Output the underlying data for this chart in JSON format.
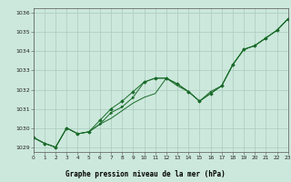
{
  "title": "Graphe pression niveau de la mer (hPa)",
  "bg_color": "#cce8dc",
  "plot_bg": "#cce8dc",
  "grid_color": "#aacabc",
  "line_color": "#1a6b2a",
  "title_bg": "#2a8050",
  "title_color": "#ffffff",
  "x_values": [
    0,
    1,
    2,
    3,
    4,
    5,
    6,
    7,
    8,
    9,
    10,
    11,
    12,
    13,
    14,
    15,
    16,
    17,
    18,
    19,
    20,
    21,
    22,
    23
  ],
  "series1": [
    1029.5,
    1029.2,
    1029.0,
    1030.0,
    1029.7,
    1029.8,
    1030.2,
    1030.5,
    1030.9,
    1031.3,
    1031.6,
    1031.8,
    1032.6,
    1032.2,
    1031.9,
    1031.4,
    1031.8,
    1032.2,
    1033.3,
    1034.1,
    1034.3,
    1034.7,
    1035.1,
    1035.7
  ],
  "series2": [
    1029.5,
    1029.2,
    1029.0,
    1030.0,
    1029.7,
    1029.8,
    1030.4,
    1031.0,
    1031.4,
    1031.9,
    1032.4,
    1032.6,
    1032.6,
    1032.3,
    1031.9,
    1031.4,
    1031.8,
    1032.2,
    1033.3,
    1034.1,
    1034.3,
    1034.7,
    1035.1,
    1035.7
  ],
  "series3": [
    1029.5,
    1029.2,
    1029.0,
    1030.0,
    1029.7,
    1029.8,
    1030.2,
    1030.8,
    1031.1,
    1031.6,
    1032.4,
    1032.6,
    1032.6,
    1032.3,
    1031.9,
    1031.4,
    1031.9,
    1032.2,
    1033.3,
    1034.1,
    1034.3,
    1034.7,
    1035.1,
    1035.7
  ],
  "ylim": [
    1028.75,
    1036.25
  ],
  "yticks": [
    1029,
    1030,
    1031,
    1032,
    1033,
    1034,
    1035,
    1036
  ],
  "xlim": [
    0,
    23
  ],
  "xticks": [
    0,
    1,
    2,
    3,
    4,
    5,
    6,
    7,
    8,
    9,
    10,
    11,
    12,
    13,
    14,
    15,
    16,
    17,
    18,
    19,
    20,
    21,
    22,
    23
  ]
}
